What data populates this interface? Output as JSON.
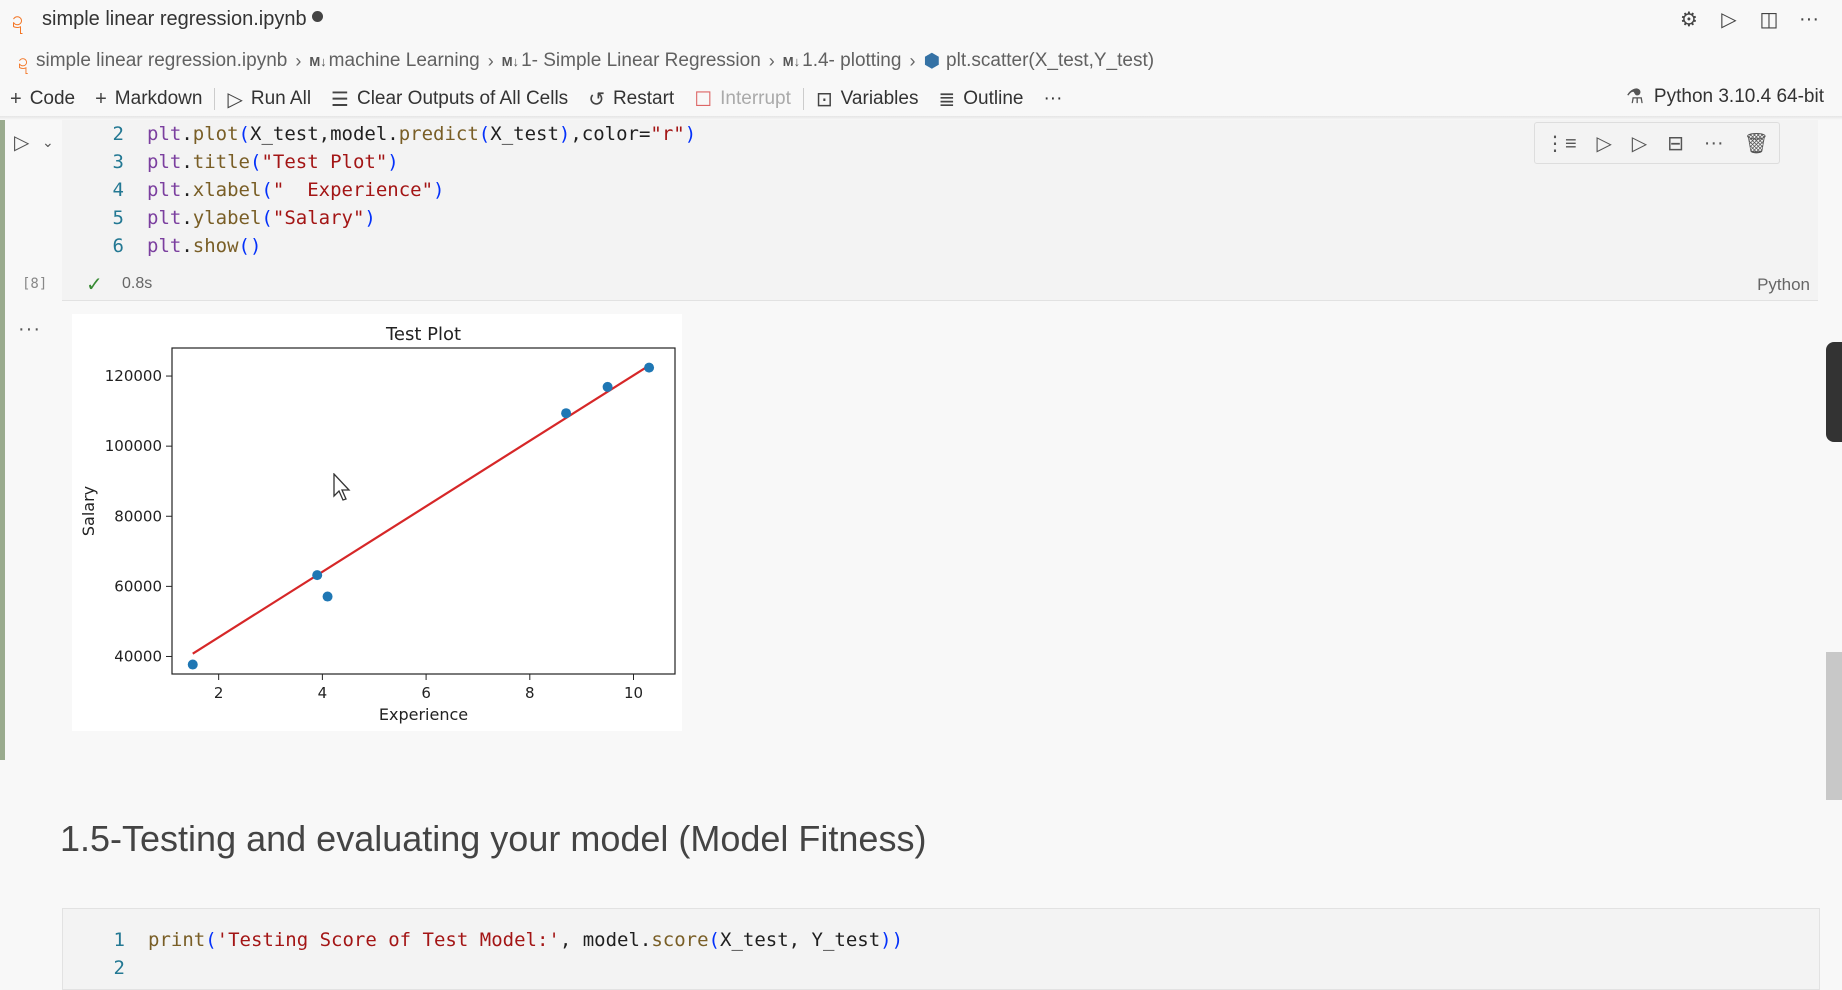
{
  "tab": {
    "title": "simple linear regression.ipynb"
  },
  "breadcrumb": [
    {
      "label": "simple linear regression.ipynb",
      "icon": "jupyter-icon"
    },
    {
      "label": "machine Learning",
      "icon": "markdown-icon"
    },
    {
      "label": "1- Simple Linear Regression",
      "icon": "markdown-icon"
    },
    {
      "label": "1.4- plotting",
      "icon": "markdown-icon"
    },
    {
      "label": "plt.scatter(X_test,Y_test)",
      "icon": "python-icon"
    }
  ],
  "md_tag": "M↓",
  "toolbar": {
    "code": "Code",
    "markdown": "Markdown",
    "run_all": "Run All",
    "clear_outputs": "Clear Outputs of All Cells",
    "restart": "Restart",
    "interrupt": "Interrupt",
    "variables": "Variables",
    "outline": "Outline",
    "kernel": "Python 3.10.4 64-bit"
  },
  "cell1": {
    "lines": [
      {
        "n": "2",
        "code": "plt.plot(X_test,model.predict(X_test),color=\"r\")"
      },
      {
        "n": "3",
        "code": "plt.title(\"Test Plot\")"
      },
      {
        "n": "4",
        "code": "plt.xlabel(\"  Experience\")"
      },
      {
        "n": "5",
        "code": "plt.ylabel(\"Salary\")"
      },
      {
        "n": "6",
        "code": "plt.show()"
      }
    ],
    "exec_count": "[8]",
    "exec_time": "0.8s",
    "language": "Python"
  },
  "chart_data": {
    "type": "scatter",
    "title": "Test Plot",
    "xlabel": "Experience",
    "ylabel": "Salary",
    "xlim": [
      1.1,
      10.8
    ],
    "ylim": [
      35000,
      128000
    ],
    "xticks": [
      2,
      4,
      6,
      8,
      10
    ],
    "yticks": [
      40000,
      60000,
      80000,
      100000,
      120000
    ],
    "points": [
      {
        "x": 1.5,
        "y": 37700
      },
      {
        "x": 3.9,
        "y": 63200
      },
      {
        "x": 4.1,
        "y": 57100
      },
      {
        "x": 8.7,
        "y": 109400
      },
      {
        "x": 9.5,
        "y": 116900
      },
      {
        "x": 10.3,
        "y": 122400
      }
    ],
    "fit_line": {
      "x": [
        1.5,
        10.3
      ],
      "y": [
        40800,
        123000
      ],
      "color": "#d62728"
    },
    "point_color": "#1f77b4"
  },
  "heading": "1.5-Testing and evaluating your model (Model Fitness)",
  "cell2": {
    "lines": [
      {
        "n": "1",
        "code": "print('Testing Score of Test Model:', model.score(X_test, Y_test))"
      },
      {
        "n": "2",
        "code": ""
      }
    ]
  }
}
